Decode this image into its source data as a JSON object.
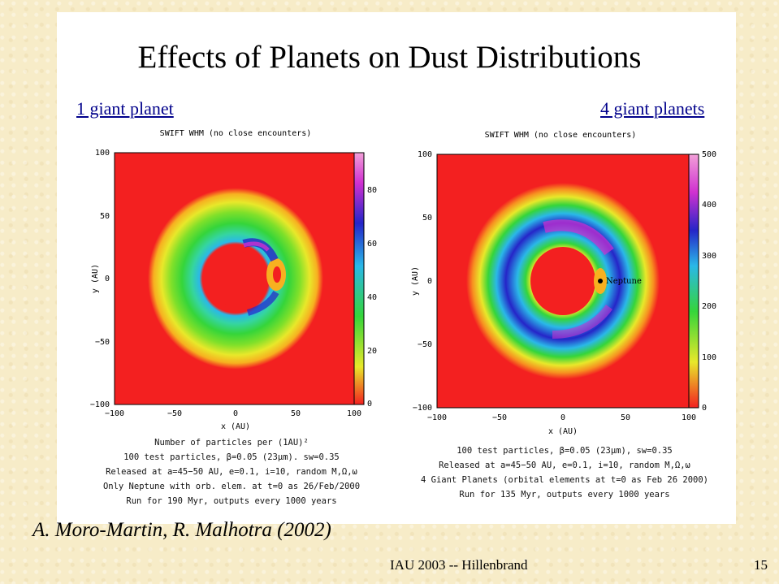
{
  "slide": {
    "title": "Effects of Planets on Dust Distributions",
    "subtitle_left": "1 giant planet",
    "subtitle_right": "4 giant planets",
    "credit": "A. Moro-Martin, R. Malhotra (2002)",
    "footer": "IAU 2003 -- Hillenbrand",
    "page_number": "15"
  },
  "colors": {
    "background": "#f7ecc8",
    "panel": "#ffffff",
    "outer_red": "#f32020",
    "ring_yellow": "#e8e82a",
    "ring_green": "#35d53a",
    "ring_cyan": "#2ab8e8",
    "ring_blue": "#2525c8",
    "ring_magenta": "#d030d0"
  },
  "chart_data": [
    {
      "type": "heatmap",
      "title": "SWIFT WHM (no close encounters)",
      "xlabel": "x (AU)",
      "ylabel": "y (AU)",
      "xlim": [
        -100,
        100
      ],
      "ylim": [
        -100,
        100
      ],
      "xticks": [
        "−100",
        "−50",
        "0",
        "50",
        "100"
      ],
      "yticks": [
        "100",
        "50",
        "0",
        "−50",
        "−100"
      ],
      "colorbar_ticks": [
        "0",
        "20",
        "40",
        "60",
        "80"
      ],
      "description_of_pattern": "ring of dust between ~20 and ~75 AU with a clump near x=35 AU",
      "caption_lines": [
        "Number of particles per (1AU)²",
        "100 test particles, β=0.05 (23μm). sw=0.35",
        "Released at a=45−50 AU, e=0.1, i=10, random M,Ω,ω",
        "Only Neptune with orb. elem. at t=0 as 26/Feb/2000",
        "Run for 190  Myr, outputs every 1000 years"
      ]
    },
    {
      "type": "heatmap",
      "title": "SWIFT WHM (no close encounters)",
      "xlabel": "x (AU)",
      "ylabel": "y (AU)",
      "xlim": [
        -100,
        100
      ],
      "ylim": [
        -100,
        100
      ],
      "xticks": [
        "−100",
        "−50",
        "0",
        "50",
        "100"
      ],
      "yticks": [
        "100",
        "50",
        "0",
        "−50",
        "−100"
      ],
      "colorbar_ticks": [
        "0",
        "100",
        "200",
        "300",
        "400",
        "500"
      ],
      "annotation": "Neptune",
      "neptune_position": [
        30,
        0
      ],
      "caption_lines": [
        "100 test particles, β=0.05 (23μm), sw=0.35",
        "Released at a=45−50 AU, e=0.1, i=10, random M,Ω,ω",
        "4 Giant Planets (orbital elements at t=0 as Feb 26 2000)",
        "Run for 135 Myr, outputs every 1000 years"
      ]
    }
  ]
}
